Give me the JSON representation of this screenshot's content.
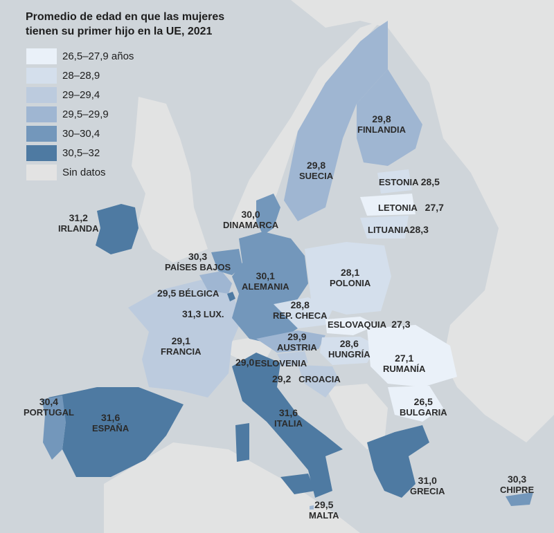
{
  "title_line1": "Promedio de edad en que las mujeres",
  "title_line2": "tienen su primer hijo en la UE, 2021",
  "legend": [
    {
      "label": "26,5–27,9 años",
      "color": "#eaf1f9"
    },
    {
      "label": "28–28,9",
      "color": "#d4dfec"
    },
    {
      "label": "29–29,4",
      "color": "#bccbde"
    },
    {
      "label": "29,5–29,9",
      "color": "#9fb6d2"
    },
    {
      "label": "30–30,4",
      "color": "#7397bb"
    },
    {
      "label": "30,5–32",
      "color": "#4e7aa2"
    },
    {
      "label": "Sin datos",
      "color": "#e3e3e3"
    }
  ],
  "countries": {
    "irlanda": {
      "name": "IRLANDA",
      "value": "31,2"
    },
    "paises_bajos": {
      "name": "PAÍSES BAJOS",
      "value": "30,3"
    },
    "belgica": {
      "name": "BÉLGICA",
      "value": "29,5"
    },
    "lux": {
      "name": "LUX.",
      "value": "31,3"
    },
    "francia": {
      "name": "FRANCIA",
      "value": "29,1"
    },
    "portugal": {
      "name": "PORTUGAL",
      "value": "30,4"
    },
    "espana": {
      "name": "ESPAÑA",
      "value": "31,6"
    },
    "dinamarca": {
      "name": "DINAMARCA",
      "value": "30,0"
    },
    "alemania": {
      "name": "ALEMANIA",
      "value": "30,1"
    },
    "suecia": {
      "name": "SUECIA",
      "value": "29,8"
    },
    "finlandia": {
      "name": "FINLANDIA",
      "value": "29,8"
    },
    "estonia": {
      "name": "ESTONIA",
      "value": "28,5"
    },
    "letonia": {
      "name": "LETONIA",
      "value": "27,7"
    },
    "lituania": {
      "name": "LITUANIA",
      "value": "28,3"
    },
    "polonia": {
      "name": "POLONIA",
      "value": "28,1"
    },
    "rep_checa": {
      "name": "REP. CHECA",
      "value": "28,8"
    },
    "eslovaquia": {
      "name": "ESLOVAQUIA",
      "value": "27,3"
    },
    "austria": {
      "name": "AUSTRIA",
      "value": "29,9"
    },
    "hungria": {
      "name": "HUNGRÍA",
      "value": "28,6"
    },
    "eslovenia": {
      "name": "ESLOVENIA",
      "value": "29,0"
    },
    "croacia": {
      "name": "CROACIA",
      "value": "29,2"
    },
    "rumania": {
      "name": "RUMANÍA",
      "value": "27,1"
    },
    "bulgaria": {
      "name": "BULGARIA",
      "value": "26,5"
    },
    "italia": {
      "name": "ITALIA",
      "value": "31,6"
    },
    "grecia": {
      "name": "GRECIA",
      "value": "31,0"
    },
    "malta": {
      "name": "MALTA",
      "value": "29,5"
    },
    "chipre": {
      "name": "CHIPRE",
      "value": "30,3"
    }
  }
}
